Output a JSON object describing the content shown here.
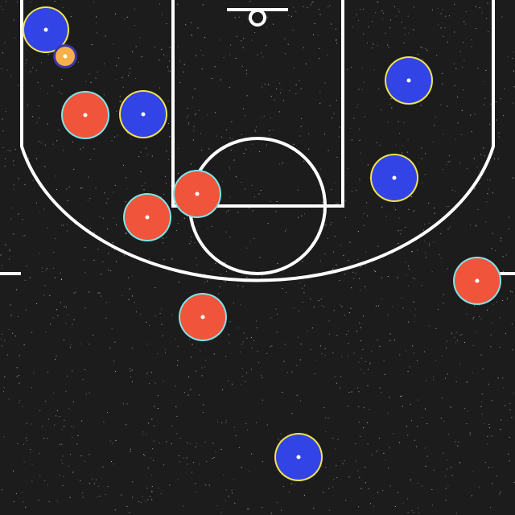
{
  "court": {
    "colors": {
      "floor": "#1c1c1c",
      "speckle": "#cfcfcf",
      "lines": "#ffffff"
    },
    "line_markings": [
      "baseline-hoop",
      "paint-lane",
      "free-throw-circle",
      "three-point-arc",
      "sideline-ticks"
    ]
  },
  "teams": {
    "blue": {
      "fill": "#3344e6",
      "ring": "#f2e34a",
      "players": 5
    },
    "red": {
      "fill": "#f0553c",
      "ring": "#7fe3ea",
      "players": 5
    }
  },
  "ball": {
    "fill": "#f6b04a",
    "ring": "#3a37a8"
  }
}
